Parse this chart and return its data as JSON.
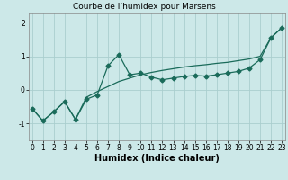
{
  "title": "Courbe de l’humidex pour Marsens",
  "xlabel": "Humidex (Indice chaleur)",
  "bg_color": "#cce8e8",
  "line_color": "#1a6b5a",
  "grid_color": "#aacece",
  "x_data": [
    0,
    1,
    2,
    3,
    4,
    5,
    6,
    7,
    8,
    9,
    10,
    11,
    12,
    13,
    14,
    15,
    16,
    17,
    18,
    19,
    20,
    21,
    22,
    23
  ],
  "y_jagged": [
    -0.55,
    -0.92,
    -0.65,
    -0.35,
    -0.88,
    -0.28,
    -0.15,
    0.72,
    1.05,
    0.45,
    0.5,
    0.38,
    0.3,
    0.35,
    0.4,
    0.43,
    0.41,
    0.45,
    0.5,
    0.55,
    0.65,
    0.9,
    1.55,
    1.85
  ],
  "y_smooth": [
    -0.55,
    -0.92,
    -0.65,
    -0.35,
    -0.88,
    -0.22,
    -0.05,
    0.1,
    0.25,
    0.35,
    0.45,
    0.52,
    0.58,
    0.63,
    0.68,
    0.72,
    0.75,
    0.79,
    0.82,
    0.87,
    0.92,
    1.0,
    1.55,
    1.85
  ],
  "xlim": [
    -0.3,
    23.3
  ],
  "ylim": [
    -1.5,
    2.3
  ],
  "yticks": [
    -1,
    0,
    1,
    2
  ],
  "xticks": [
    0,
    1,
    2,
    3,
    4,
    5,
    6,
    7,
    8,
    9,
    10,
    11,
    12,
    13,
    14,
    15,
    16,
    17,
    18,
    19,
    20,
    21,
    22,
    23
  ],
  "title_fontsize": 6.5,
  "xlabel_fontsize": 7,
  "tick_fontsize": 5.5
}
